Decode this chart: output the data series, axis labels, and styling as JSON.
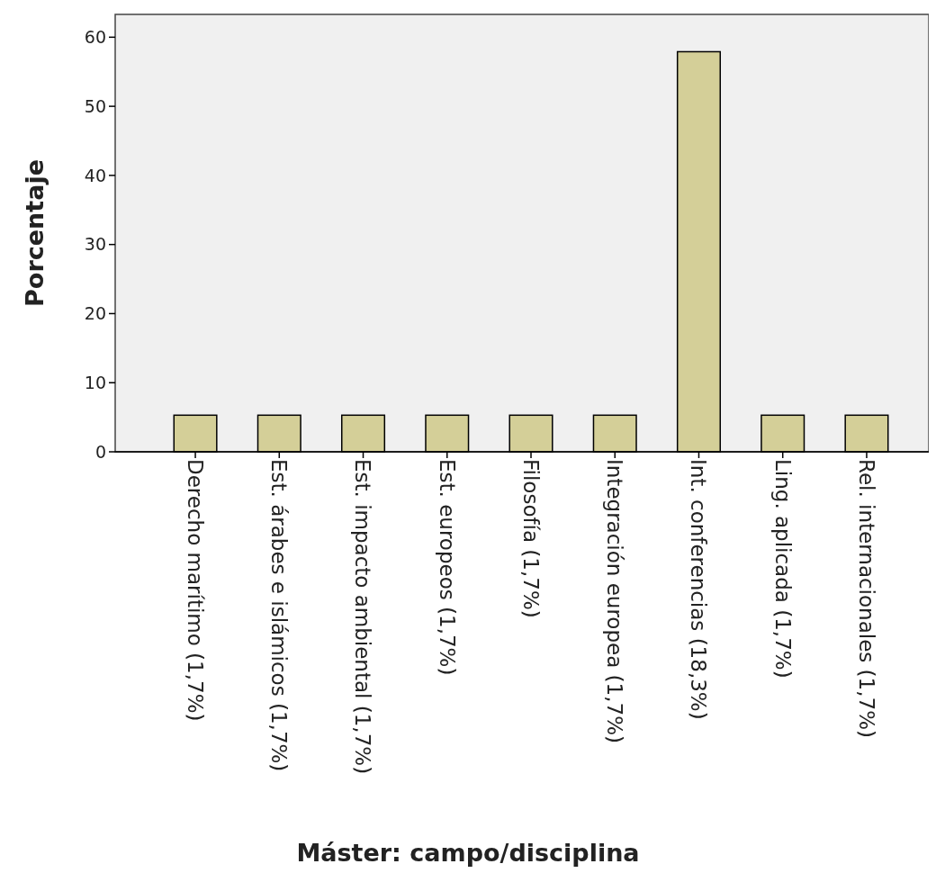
{
  "chart_data": {
    "type": "bar",
    "xlabel": "Máster: campo/disciplina",
    "ylabel": "Porcentaje",
    "categories": [
      "Derecho marítimo (1,7%)",
      "Est. árabes e islámicos (1,7%)",
      "Est. impacto ambiental (1,7%)",
      "Est. europeos (1,7%)",
      "Filosofía (1,7%)",
      "Integración europea (1,7%)",
      "Int. conferencias (18,3%)",
      "Ling. aplicada (1,7%)",
      "Rel. internacionales (1,7%)"
    ],
    "values": [
      5.3,
      5.3,
      5.3,
      5.3,
      5.3,
      5.3,
      57.9,
      5.3,
      5.3
    ],
    "color": "#d4cf98",
    "ylim": [
      0,
      63.3
    ],
    "yticks": [
      0,
      10,
      20,
      30,
      40,
      50,
      60
    ],
    "grid": false
  }
}
